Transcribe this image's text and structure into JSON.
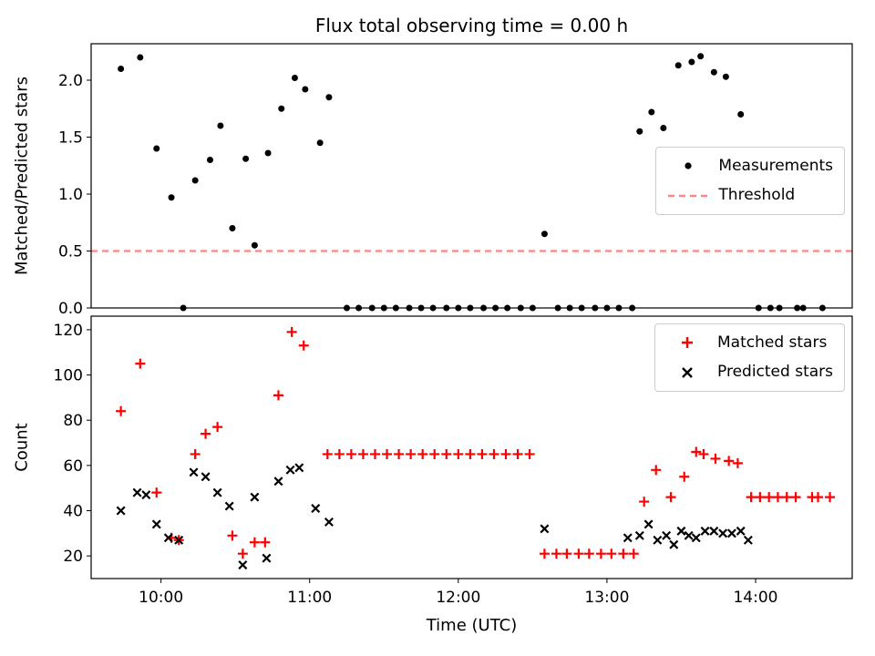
{
  "figure": {
    "title": "Flux total observing time = 0.00 h",
    "xlabel": "Time (UTC)"
  },
  "colors": {
    "measurement": "#000000",
    "threshold": "#ff8585",
    "matched": "#ff0000",
    "predicted": "#000000",
    "axis": "#000000",
    "legend_border": "#cccccc"
  },
  "chart_data": [
    {
      "type": "scatter",
      "title": "Flux total observing time = 0.00 h",
      "ylabel": "Matched/Predicted stars",
      "xlim": [
        9.53,
        14.65
      ],
      "ylim": [
        0,
        2.32
      ],
      "yticks": [
        0.0,
        0.5,
        1.0,
        1.5,
        2.0
      ],
      "ytick_labels": [
        "0.0",
        "0.5",
        "1.0",
        "1.5",
        "2.0"
      ],
      "grid": false,
      "legend_position": "center right",
      "legend": [
        {
          "label": "Measurements",
          "marker": "dot",
          "color": "#000000"
        },
        {
          "label": "Threshold",
          "marker": "dashed-line",
          "color": "#ff8585"
        }
      ],
      "threshold": {
        "y": 0.5,
        "color": "#ff8585",
        "style": "dashed"
      },
      "series": [
        {
          "name": "Measurements",
          "marker": "dot",
          "color": "#000000",
          "points": [
            [
              9.73,
              2.1
            ],
            [
              9.86,
              2.2
            ],
            [
              9.97,
              1.4
            ],
            [
              10.07,
              0.97
            ],
            [
              10.15,
              0.0
            ],
            [
              10.23,
              1.12
            ],
            [
              10.33,
              1.3
            ],
            [
              10.4,
              1.6
            ],
            [
              10.48,
              0.7
            ],
            [
              10.57,
              1.31
            ],
            [
              10.63,
              0.55
            ],
            [
              10.72,
              1.36
            ],
            [
              10.81,
              1.75
            ],
            [
              10.9,
              2.02
            ],
            [
              10.97,
              1.92
            ],
            [
              11.07,
              1.45
            ],
            [
              11.13,
              1.85
            ],
            [
              11.25,
              0
            ],
            [
              11.33,
              0
            ],
            [
              11.42,
              0
            ],
            [
              11.5,
              0
            ],
            [
              11.58,
              0
            ],
            [
              11.67,
              0
            ],
            [
              11.75,
              0
            ],
            [
              11.83,
              0
            ],
            [
              11.92,
              0
            ],
            [
              12.0,
              0
            ],
            [
              12.08,
              0
            ],
            [
              12.17,
              0
            ],
            [
              12.25,
              0
            ],
            [
              12.33,
              0
            ],
            [
              12.42,
              0
            ],
            [
              12.5,
              0
            ],
            [
              12.58,
              0.65
            ],
            [
              12.67,
              0
            ],
            [
              12.75,
              0
            ],
            [
              12.83,
              0
            ],
            [
              12.92,
              0
            ],
            [
              13.0,
              0
            ],
            [
              13.08,
              0
            ],
            [
              13.17,
              0
            ],
            [
              13.22,
              1.55
            ],
            [
              13.3,
              1.72
            ],
            [
              13.38,
              1.58
            ],
            [
              13.48,
              2.13
            ],
            [
              13.57,
              2.16
            ],
            [
              13.63,
              2.21
            ],
            [
              13.72,
              2.07
            ],
            [
              13.8,
              2.03
            ],
            [
              13.9,
              1.7
            ],
            [
              14.02,
              0
            ],
            [
              14.1,
              0
            ],
            [
              14.16,
              0
            ],
            [
              14.28,
              0
            ],
            [
              14.32,
              0
            ],
            [
              14.45,
              0
            ]
          ]
        }
      ]
    },
    {
      "type": "scatter",
      "ylabel": "Count",
      "xlabel": "Time (UTC)",
      "xlim": [
        9.53,
        14.65
      ],
      "ylim": [
        10,
        126
      ],
      "yticks": [
        20,
        40,
        60,
        80,
        100,
        120
      ],
      "ytick_labels": [
        "20",
        "40",
        "60",
        "80",
        "100",
        "120"
      ],
      "xticks": [
        10,
        11,
        12,
        13,
        14
      ],
      "xtick_labels": [
        "10:00",
        "11:00",
        "12:00",
        "13:00",
        "14:00"
      ],
      "grid": false,
      "legend_position": "upper right",
      "legend": [
        {
          "label": "Matched stars",
          "marker": "plus",
          "color": "#ff0000"
        },
        {
          "label": "Predicted stars",
          "marker": "x",
          "color": "#000000"
        }
      ],
      "series": [
        {
          "name": "Matched stars",
          "marker": "plus",
          "color": "#ff0000",
          "points": [
            [
              9.73,
              84
            ],
            [
              9.86,
              105
            ],
            [
              9.97,
              48
            ],
            [
              10.07,
              28
            ],
            [
              10.12,
              27
            ],
            [
              10.23,
              65
            ],
            [
              10.3,
              74
            ],
            [
              10.38,
              77
            ],
            [
              10.48,
              29
            ],
            [
              10.55,
              21
            ],
            [
              10.63,
              26
            ],
            [
              10.7,
              26
            ],
            [
              10.79,
              91
            ],
            [
              10.88,
              119
            ],
            [
              10.96,
              113
            ],
            [
              11.12,
              65
            ],
            [
              11.2,
              65
            ],
            [
              11.28,
              65
            ],
            [
              11.36,
              65
            ],
            [
              11.44,
              65
            ],
            [
              11.52,
              65
            ],
            [
              11.6,
              65
            ],
            [
              11.68,
              65
            ],
            [
              11.76,
              65
            ],
            [
              11.84,
              65
            ],
            [
              11.92,
              65
            ],
            [
              12.0,
              65
            ],
            [
              12.08,
              65
            ],
            [
              12.16,
              65
            ],
            [
              12.24,
              65
            ],
            [
              12.32,
              65
            ],
            [
              12.4,
              65
            ],
            [
              12.48,
              65
            ],
            [
              12.58,
              21
            ],
            [
              12.66,
              21
            ],
            [
              12.73,
              21
            ],
            [
              12.81,
              21
            ],
            [
              12.88,
              21
            ],
            [
              12.96,
              21
            ],
            [
              13.03,
              21
            ],
            [
              13.11,
              21
            ],
            [
              13.18,
              21
            ],
            [
              13.25,
              44
            ],
            [
              13.33,
              58
            ],
            [
              13.43,
              46
            ],
            [
              13.52,
              55
            ],
            [
              13.6,
              66
            ],
            [
              13.65,
              65
            ],
            [
              13.73,
              63
            ],
            [
              13.82,
              62
            ],
            [
              13.88,
              61
            ],
            [
              13.97,
              46
            ],
            [
              14.03,
              46
            ],
            [
              14.09,
              46
            ],
            [
              14.15,
              46
            ],
            [
              14.21,
              46
            ],
            [
              14.27,
              46
            ],
            [
              14.38,
              46
            ],
            [
              14.42,
              46
            ],
            [
              14.5,
              46
            ]
          ]
        },
        {
          "name": "Predicted stars",
          "marker": "x",
          "color": "#000000",
          "points": [
            [
              9.73,
              40
            ],
            [
              9.84,
              48
            ],
            [
              9.9,
              47
            ],
            [
              9.97,
              34
            ],
            [
              10.05,
              28
            ],
            [
              10.12,
              27
            ],
            [
              10.22,
              57
            ],
            [
              10.3,
              55
            ],
            [
              10.38,
              48
            ],
            [
              10.46,
              42
            ],
            [
              10.55,
              16
            ],
            [
              10.63,
              46
            ],
            [
              10.71,
              19
            ],
            [
              10.79,
              53
            ],
            [
              10.87,
              58
            ],
            [
              10.93,
              59
            ],
            [
              11.04,
              41
            ],
            [
              11.13,
              35
            ],
            [
              12.58,
              32
            ],
            [
              13.14,
              28
            ],
            [
              13.22,
              29
            ],
            [
              13.28,
              34
            ],
            [
              13.34,
              27
            ],
            [
              13.4,
              29
            ],
            [
              13.45,
              25
            ],
            [
              13.5,
              31
            ],
            [
              13.55,
              29
            ],
            [
              13.6,
              28
            ],
            [
              13.66,
              31
            ],
            [
              13.72,
              31
            ],
            [
              13.78,
              30
            ],
            [
              13.84,
              30
            ],
            [
              13.9,
              31
            ],
            [
              13.95,
              27
            ]
          ]
        }
      ]
    }
  ]
}
